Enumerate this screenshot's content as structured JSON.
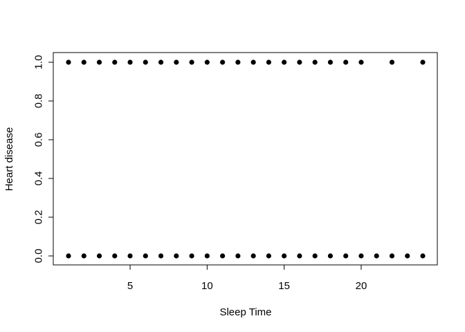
{
  "chart_data": {
    "type": "scatter",
    "title": "",
    "xlabel": "Sleep Time",
    "ylabel": "Heart disease",
    "xlim": [
      1,
      24
    ],
    "ylim": [
      0,
      1
    ],
    "x_ticks": [
      5,
      10,
      15,
      20
    ],
    "y_ticks": [
      0.0,
      0.2,
      0.4,
      0.6,
      0.8,
      1.0
    ],
    "x_tick_labels": [
      "5",
      "10",
      "15",
      "20"
    ],
    "y_tick_labels": [
      "0.0",
      "0.2",
      "0.4",
      "0.6",
      "0.8",
      "1.0"
    ],
    "grid": false,
    "point_color": "#000000",
    "points": [
      {
        "x": 1,
        "y": 1
      },
      {
        "x": 2,
        "y": 1
      },
      {
        "x": 3,
        "y": 1
      },
      {
        "x": 4,
        "y": 1
      },
      {
        "x": 5,
        "y": 1
      },
      {
        "x": 6,
        "y": 1
      },
      {
        "x": 7,
        "y": 1
      },
      {
        "x": 8,
        "y": 1
      },
      {
        "x": 9,
        "y": 1
      },
      {
        "x": 10,
        "y": 1
      },
      {
        "x": 11,
        "y": 1
      },
      {
        "x": 12,
        "y": 1
      },
      {
        "x": 13,
        "y": 1
      },
      {
        "x": 14,
        "y": 1
      },
      {
        "x": 15,
        "y": 1
      },
      {
        "x": 16,
        "y": 1
      },
      {
        "x": 17,
        "y": 1
      },
      {
        "x": 18,
        "y": 1
      },
      {
        "x": 19,
        "y": 1
      },
      {
        "x": 20,
        "y": 1
      },
      {
        "x": 22,
        "y": 1
      },
      {
        "x": 24,
        "y": 1
      },
      {
        "x": 1,
        "y": 0
      },
      {
        "x": 2,
        "y": 0
      },
      {
        "x": 3,
        "y": 0
      },
      {
        "x": 4,
        "y": 0
      },
      {
        "x": 5,
        "y": 0
      },
      {
        "x": 6,
        "y": 0
      },
      {
        "x": 7,
        "y": 0
      },
      {
        "x": 8,
        "y": 0
      },
      {
        "x": 9,
        "y": 0
      },
      {
        "x": 10,
        "y": 0
      },
      {
        "x": 11,
        "y": 0
      },
      {
        "x": 12,
        "y": 0
      },
      {
        "x": 13,
        "y": 0
      },
      {
        "x": 14,
        "y": 0
      },
      {
        "x": 15,
        "y": 0
      },
      {
        "x": 16,
        "y": 0
      },
      {
        "x": 17,
        "y": 0
      },
      {
        "x": 18,
        "y": 0
      },
      {
        "x": 19,
        "y": 0
      },
      {
        "x": 20,
        "y": 0
      },
      {
        "x": 21,
        "y": 0
      },
      {
        "x": 22,
        "y": 0
      },
      {
        "x": 23,
        "y": 0
      },
      {
        "x": 24,
        "y": 0
      }
    ]
  }
}
